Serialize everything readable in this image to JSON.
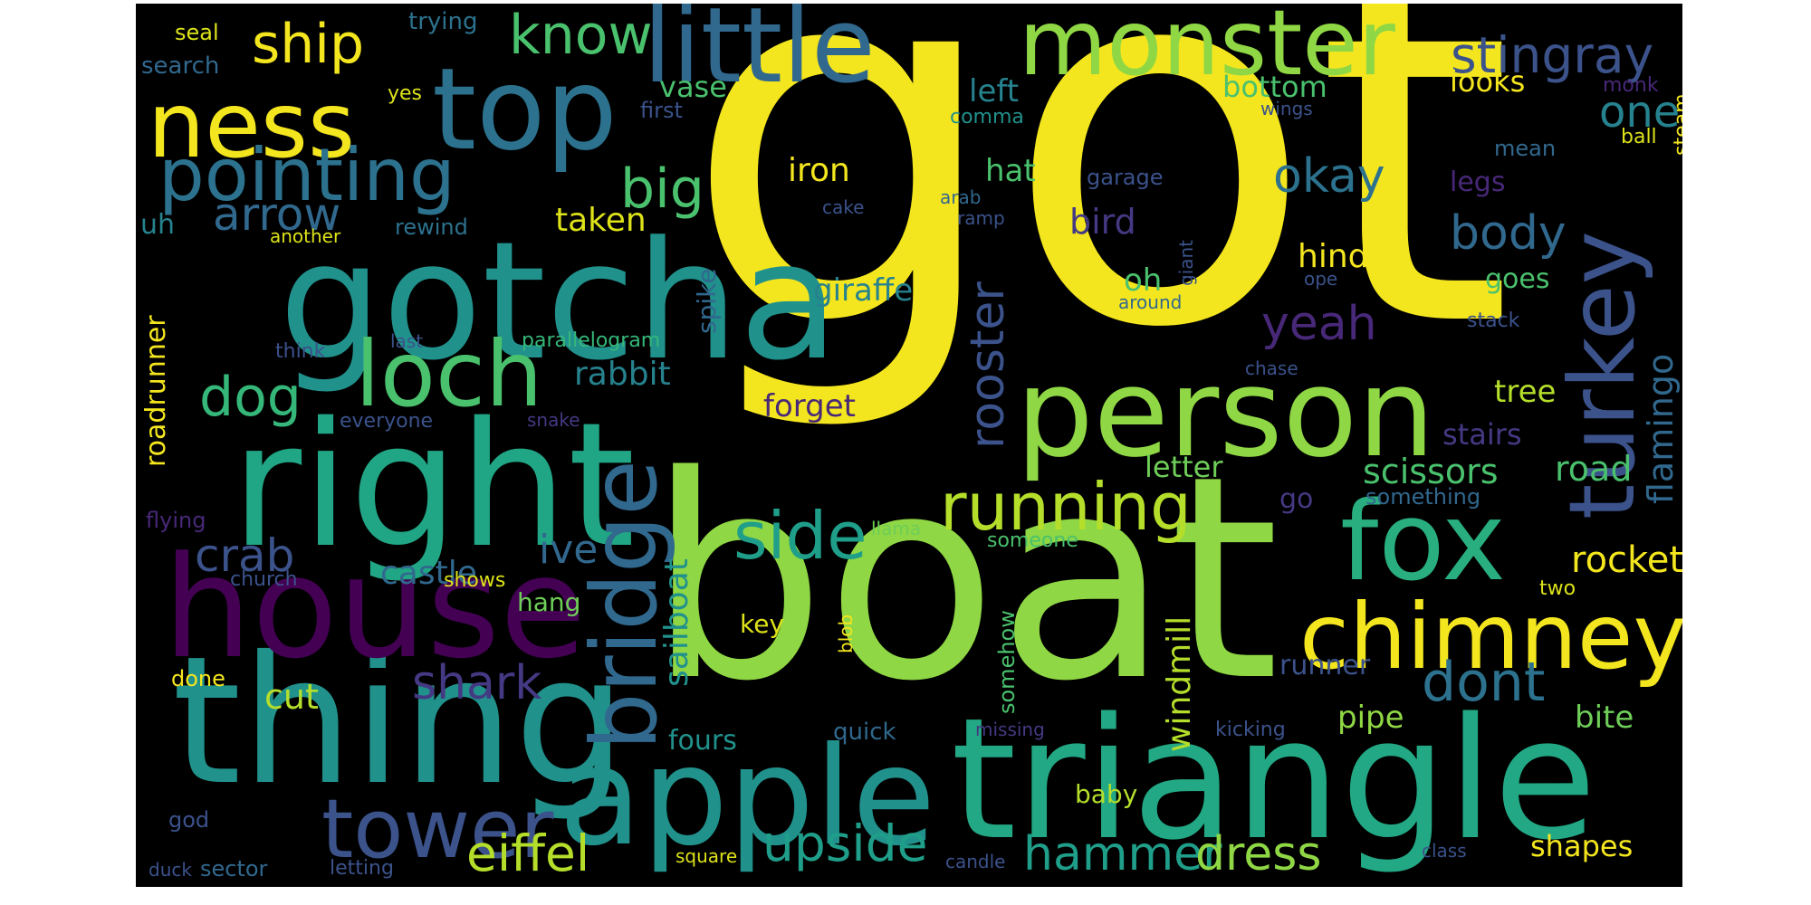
{
  "cloud": {
    "background": "#000000",
    "palette": {
      "yellow": "#f4e61e",
      "lime": "#8fd744",
      "green": "#35b779",
      "teal": "#21918c",
      "blue": "#31688e",
      "indigo": "#443983",
      "purple": "#440154"
    },
    "words": [
      {
        "text": "got",
        "color": "#f4e61e"
      },
      {
        "text": "boat",
        "color": "#8fd744"
      },
      {
        "text": "gotcha",
        "color": "#21918c"
      },
      {
        "text": "right",
        "color": "#21a685"
      },
      {
        "text": "thing",
        "color": "#21918c"
      },
      {
        "text": "house",
        "color": "#440154"
      },
      {
        "text": "triangle",
        "color": "#22a884"
      },
      {
        "text": "apple",
        "color": "#21918c"
      },
      {
        "text": "person",
        "color": "#8fd744"
      },
      {
        "text": "little",
        "color": "#31688e"
      },
      {
        "text": "monster",
        "color": "#8fd744"
      },
      {
        "text": "top",
        "color": "#2c728e"
      },
      {
        "text": "fox",
        "color": "#29af7f"
      },
      {
        "text": "chimney",
        "color": "#f4e61e"
      },
      {
        "text": "ness",
        "color": "#f4e61e"
      },
      {
        "text": "loch",
        "color": "#4ac16d"
      },
      {
        "text": "turkey",
        "color": "#3b528b"
      },
      {
        "text": "bridge",
        "color": "#31688e"
      },
      {
        "text": "tower",
        "color": "#3b528b"
      },
      {
        "text": "pointing",
        "color": "#2c728e"
      },
      {
        "text": "running",
        "color": "#b5de2b"
      },
      {
        "text": "side",
        "color": "#1f9e89"
      },
      {
        "text": "know",
        "color": "#4ac16d"
      },
      {
        "text": "ship",
        "color": "#f4e61e"
      },
      {
        "text": "stingray",
        "color": "#3b528b"
      },
      {
        "text": "dont",
        "color": "#2c728e"
      },
      {
        "text": "dog",
        "color": "#35b779"
      },
      {
        "text": "big",
        "color": "#4ac16d"
      },
      {
        "text": "crab",
        "color": "#3b528b"
      },
      {
        "text": "arrow",
        "color": "#31688e"
      },
      {
        "text": "eiffel",
        "color": "#b5de2b"
      },
      {
        "text": "upside",
        "color": "#1f9e89"
      },
      {
        "text": "hammer",
        "color": "#1f9e89"
      },
      {
        "text": "dress",
        "color": "#8fd744"
      },
      {
        "text": "shark",
        "color": "#443983"
      },
      {
        "text": "rooster",
        "color": "#3b528b"
      },
      {
        "text": "yeah",
        "color": "#482878"
      },
      {
        "text": "okay",
        "color": "#2c728e"
      },
      {
        "text": "body",
        "color": "#31688e"
      },
      {
        "text": "one",
        "color": "#26828e"
      },
      {
        "text": "rocket",
        "color": "#f4e61e"
      },
      {
        "text": "scissors",
        "color": "#4ac16d"
      },
      {
        "text": "road",
        "color": "#4ac16d"
      },
      {
        "text": "flamingo",
        "color": "#31688e"
      },
      {
        "text": "ive",
        "color": "#31688e"
      },
      {
        "text": "castle",
        "color": "#31688e"
      },
      {
        "text": "cut",
        "color": "#b5de2b"
      },
      {
        "text": "sailboat",
        "color": "#21918c"
      },
      {
        "text": "windmill",
        "color": "#b5de2b"
      },
      {
        "text": "rabbit",
        "color": "#26828e"
      },
      {
        "text": "taken",
        "color": "#dde318"
      },
      {
        "text": "forget",
        "color": "#482878"
      },
      {
        "text": "bird",
        "color": "#443983"
      },
      {
        "text": "hind",
        "color": "#f4e61e"
      },
      {
        "text": "oh",
        "color": "#4ac16d"
      },
      {
        "text": "hat",
        "color": "#4ac16d"
      },
      {
        "text": "iron",
        "color": "#f4e61e"
      },
      {
        "text": "giraffe",
        "color": "#26828e"
      },
      {
        "text": "letter",
        "color": "#6ece58"
      },
      {
        "text": "bottom",
        "color": "#4ac16d"
      },
      {
        "text": "left",
        "color": "#26828e"
      },
      {
        "text": "vase",
        "color": "#4ac16d"
      },
      {
        "text": "looks",
        "color": "#f4e61e"
      },
      {
        "text": "legs",
        "color": "#482878"
      },
      {
        "text": "goes",
        "color": "#4ac16d"
      },
      {
        "text": "tree",
        "color": "#b5de2b"
      },
      {
        "text": "stairs",
        "color": "#443983"
      },
      {
        "text": "pipe",
        "color": "#8fd744"
      },
      {
        "text": "bite",
        "color": "#6ece58"
      },
      {
        "text": "shapes",
        "color": "#f4e61e"
      },
      {
        "text": "runner",
        "color": "#3b528b"
      },
      {
        "text": "fours",
        "color": "#21918c"
      },
      {
        "text": "go",
        "color": "#443983"
      },
      {
        "text": "roadrunner",
        "color": "#f4e61e"
      },
      {
        "text": "spike",
        "color": "#31688e"
      },
      {
        "text": "uh",
        "color": "#26828e"
      },
      {
        "text": "hang",
        "color": "#6ece58"
      },
      {
        "text": "key",
        "color": "#dde318"
      },
      {
        "text": "quick",
        "color": "#31688e"
      },
      {
        "text": "baby",
        "color": "#b5de2b"
      },
      {
        "text": "somehow",
        "color": "#4ac16d"
      },
      {
        "text": "seal",
        "color": "#dde318"
      },
      {
        "text": "trying",
        "color": "#2c728e"
      },
      {
        "text": "search",
        "color": "#31688e"
      },
      {
        "text": "yes",
        "color": "#dde318"
      },
      {
        "text": "first",
        "color": "#3b528b"
      },
      {
        "text": "comma",
        "color": "#21918c"
      },
      {
        "text": "wings",
        "color": "#3b528b"
      },
      {
        "text": "monk",
        "color": "#482878"
      },
      {
        "text": "steam",
        "color": "#f4e61e"
      },
      {
        "text": "ball",
        "color": "#dde318"
      },
      {
        "text": "mean",
        "color": "#31688e"
      },
      {
        "text": "cake",
        "color": "#3b528b"
      },
      {
        "text": "arab",
        "color": "#31688e"
      },
      {
        "text": "ramp",
        "color": "#3b528b"
      },
      {
        "text": "garage",
        "color": "#3b528b"
      },
      {
        "text": "giant",
        "color": "#3b528b"
      },
      {
        "text": "ope",
        "color": "#3b528b"
      },
      {
        "text": "around",
        "color": "#31688e"
      },
      {
        "text": "stack",
        "color": "#3b528b"
      },
      {
        "text": "another",
        "color": "#dde318"
      },
      {
        "text": "rewind",
        "color": "#2c728e"
      },
      {
        "text": "think",
        "color": "#3b528b"
      },
      {
        "text": "last",
        "color": "#3b528b"
      },
      {
        "text": "parallelogram",
        "color": "#35b779"
      },
      {
        "text": "everyone",
        "color": "#3b528b"
      },
      {
        "text": "snake",
        "color": "#443983"
      },
      {
        "text": "chase",
        "color": "#3b528b"
      },
      {
        "text": "flying",
        "color": "#482878"
      },
      {
        "text": "church",
        "color": "#3b528b"
      },
      {
        "text": "shows",
        "color": "#dde318"
      },
      {
        "text": "llama",
        "color": "#6ece58"
      },
      {
        "text": "someone",
        "color": "#4ac16d"
      },
      {
        "text": "something",
        "color": "#31688e"
      },
      {
        "text": "two",
        "color": "#dde318"
      },
      {
        "text": "done",
        "color": "#f4e61e"
      },
      {
        "text": "blob",
        "color": "#f4e61e"
      },
      {
        "text": "missing",
        "color": "#443983"
      },
      {
        "text": "kicking",
        "color": "#3b528b"
      },
      {
        "text": "god",
        "color": "#3b528b"
      },
      {
        "text": "duck",
        "color": "#3b528b"
      },
      {
        "text": "sector",
        "color": "#31688e"
      },
      {
        "text": "letting",
        "color": "#3b528b"
      },
      {
        "text": "square",
        "color": "#dde318"
      },
      {
        "text": "candle",
        "color": "#3b528b"
      },
      {
        "text": "class",
        "color": "#3b528b"
      }
    ]
  }
}
